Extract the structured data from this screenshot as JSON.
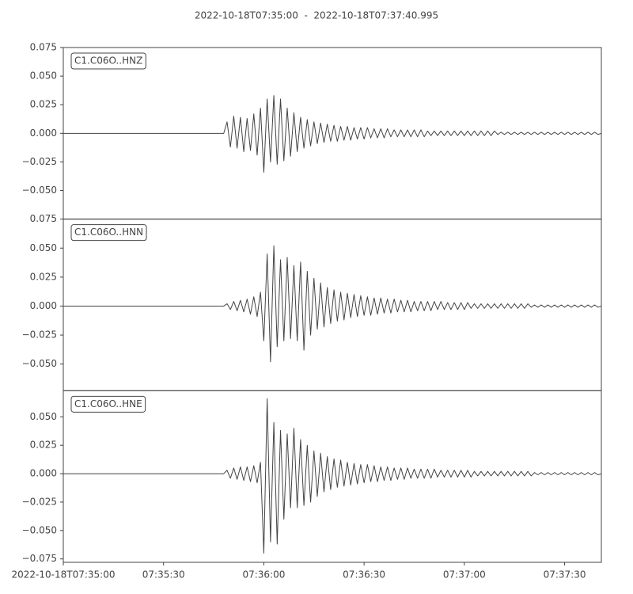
{
  "chart_data": {
    "type": "line",
    "title": "2022-10-18T07:35:00  -  2022-10-18T07:37:40.995",
    "xlim": [
      "07:35:00",
      "07:37:40.995"
    ],
    "xticks": [
      {
        "value": "07:35:00",
        "label": "2022-10-18T07:35:00"
      },
      "07:35:30",
      "07:36:00",
      "07:36:30",
      "07:37:00",
      "07:37:30"
    ],
    "x": [
      "07:35:00",
      "07:35:48",
      "07:35:49",
      "07:35:50",
      "07:35:51",
      "07:35:52",
      "07:35:53",
      "07:35:54",
      "07:35:55",
      "07:35:56",
      "07:35:57",
      "07:35:58",
      "07:35:59",
      "07:36:00",
      "07:36:01",
      "07:36:02",
      "07:36:03",
      "07:36:04",
      "07:36:05",
      "07:36:06",
      "07:36:07",
      "07:36:08",
      "07:36:09",
      "07:36:10",
      "07:36:11",
      "07:36:12",
      "07:36:13",
      "07:36:14",
      "07:36:15",
      "07:36:16",
      "07:36:17",
      "07:36:18",
      "07:36:19",
      "07:36:20",
      "07:36:21",
      "07:36:22",
      "07:36:23",
      "07:36:24",
      "07:36:25",
      "07:36:26",
      "07:36:27",
      "07:36:28",
      "07:36:29",
      "07:36:30",
      "07:36:31",
      "07:36:32",
      "07:36:33",
      "07:36:34",
      "07:36:35",
      "07:36:36",
      "07:36:37",
      "07:36:38",
      "07:36:39",
      "07:36:40",
      "07:36:41",
      "07:36:42",
      "07:36:43",
      "07:36:44",
      "07:36:45",
      "07:36:46",
      "07:36:47",
      "07:36:48",
      "07:36:49",
      "07:36:50",
      "07:36:51",
      "07:36:52",
      "07:36:53",
      "07:36:54",
      "07:36:55",
      "07:36:56",
      "07:36:57",
      "07:36:58",
      "07:36:59",
      "07:37:00",
      "07:37:01",
      "07:37:02",
      "07:37:03",
      "07:37:04",
      "07:37:05",
      "07:37:06",
      "07:37:07",
      "07:37:08",
      "07:37:09",
      "07:37:10",
      "07:37:11",
      "07:37:12",
      "07:37:13",
      "07:37:14",
      "07:37:15",
      "07:37:16",
      "07:37:17",
      "07:37:18",
      "07:37:19",
      "07:37:20",
      "07:37:21",
      "07:37:22",
      "07:37:23",
      "07:37:24",
      "07:37:25",
      "07:37:26",
      "07:37:27",
      "07:37:28",
      "07:37:29",
      "07:37:30",
      "07:37:31",
      "07:37:32",
      "07:37:33",
      "07:37:34",
      "07:37:35",
      "07:37:36",
      "07:37:37",
      "07:37:38",
      "07:37:39",
      "07:37:40",
      "07:37:40.995"
    ],
    "series": [
      {
        "name": "C1.C06O..HNZ",
        "color": "#444444",
        "ylim": [
          -0.075,
          0.075
        ],
        "yticks": [
          0.075,
          {
            "value": 0.05,
            "label": "0.050"
          },
          0.025,
          {
            "value": 0,
            "label": "0.000"
          },
          {
            "value": -0.025,
            "label": "−0.025"
          },
          {
            "value": -0.05,
            "label": "−0.050"
          }
        ],
        "values": [
          0,
          0,
          0.01,
          -0.012,
          0.015,
          -0.013,
          0.014,
          -0.016,
          0.013,
          -0.015,
          0.017,
          -0.019,
          0.022,
          -0.034,
          0.03,
          -0.025,
          0.033,
          -0.027,
          0.03,
          -0.024,
          0.022,
          -0.02,
          0.018,
          -0.016,
          0.014,
          -0.013,
          0.012,
          -0.011,
          0.01,
          -0.009,
          0.009,
          -0.008,
          0.008,
          -0.007,
          0.007,
          -0.007,
          0.006,
          -0.006,
          0.006,
          -0.006,
          0.005,
          -0.005,
          0.005,
          -0.005,
          0.005,
          -0.004,
          0.004,
          -0.004,
          0.004,
          -0.004,
          0.004,
          -0.003,
          0.003,
          -0.003,
          0.003,
          -0.003,
          0.003,
          -0.003,
          0.003,
          -0.003,
          0.003,
          -0.003,
          0.002,
          -0.002,
          0.002,
          -0.002,
          0.002,
          -0.002,
          0.002,
          -0.002,
          0.002,
          -0.002,
          0.002,
          -0.002,
          0.002,
          -0.002,
          0.002,
          -0.002,
          0.002,
          -0.002,
          0.002,
          -0.002,
          0.002,
          -0.001,
          0.001,
          -0.001,
          0.001,
          -0.001,
          0.001,
          -0.001,
          0.001,
          -0.001,
          0.001,
          -0.001,
          0.001,
          -0.001,
          0.001,
          -0.001,
          0.001,
          -0.001,
          0.001,
          -0.001,
          0.001,
          -0.001,
          0.001,
          -0.001,
          0.001,
          -0.001,
          0.001,
          -0.001,
          0.001,
          -0.001,
          0.001,
          -0.001,
          0
        ]
      },
      {
        "name": "C1.C06O..HNN",
        "color": "#444444",
        "ylim": [
          -0.073,
          0.075
        ],
        "yticks": [
          0.075,
          {
            "value": 0.05,
            "label": "0.050"
          },
          0.025,
          {
            "value": 0,
            "label": "0.000"
          },
          {
            "value": -0.025,
            "label": "−0.025"
          },
          {
            "value": -0.05,
            "label": "−0.050"
          }
        ],
        "values": [
          0,
          0,
          0.002,
          -0.003,
          0.004,
          -0.004,
          0.005,
          -0.005,
          0.006,
          -0.007,
          0.008,
          -0.009,
          0.012,
          -0.03,
          0.045,
          -0.048,
          0.052,
          -0.035,
          0.04,
          -0.03,
          0.042,
          -0.028,
          0.035,
          -0.03,
          0.038,
          -0.038,
          0.03,
          -0.025,
          0.024,
          -0.02,
          0.02,
          -0.018,
          0.016,
          -0.015,
          0.014,
          -0.013,
          0.012,
          -0.012,
          0.011,
          -0.01,
          0.01,
          -0.009,
          0.009,
          -0.008,
          0.008,
          -0.008,
          0.007,
          -0.007,
          0.007,
          -0.006,
          0.006,
          -0.006,
          0.006,
          -0.005,
          0.005,
          -0.005,
          0.005,
          -0.005,
          0.004,
          -0.004,
          0.004,
          -0.004,
          0.004,
          -0.004,
          0.004,
          -0.003,
          0.004,
          -0.003,
          0.003,
          -0.003,
          0.003,
          -0.003,
          0.003,
          -0.003,
          0.003,
          -0.002,
          0.002,
          -0.002,
          0.002,
          -0.002,
          0.002,
          -0.002,
          0.002,
          -0.002,
          0.002,
          -0.002,
          0.002,
          -0.002,
          0.002,
          -0.002,
          0.002,
          -0.002,
          0.002,
          -0.001,
          0.001,
          -0.001,
          0.001,
          -0.001,
          0.001,
          -0.001,
          0.001,
          -0.001,
          0.001,
          -0.001,
          0.001,
          -0.001,
          0.001,
          -0.001,
          0.001,
          -0.001,
          0.001,
          -0.001,
          0.001,
          -0.001,
          0
        ]
      },
      {
        "name": "C1.C06O..HNE",
        "color": "#444444",
        "ylim": [
          -0.078,
          0.073
        ],
        "yticks": [
          {
            "value": 0.05,
            "label": "0.050"
          },
          0.025,
          {
            "value": 0,
            "label": "0.000"
          },
          {
            "value": -0.025,
            "label": "−0.025"
          },
          {
            "value": -0.05,
            "label": "−0.050"
          },
          {
            "value": -0.075,
            "label": "−0.075"
          }
        ],
        "values": [
          0,
          0,
          0.003,
          -0.004,
          0.005,
          -0.005,
          0.006,
          -0.006,
          0.006,
          -0.007,
          0.007,
          -0.008,
          0.01,
          -0.07,
          0.066,
          -0.06,
          0.045,
          -0.062,
          0.038,
          -0.04,
          0.035,
          -0.03,
          0.04,
          -0.03,
          0.03,
          -0.028,
          0.025,
          -0.025,
          0.02,
          -0.02,
          0.018,
          -0.016,
          0.015,
          -0.014,
          0.013,
          -0.012,
          0.012,
          -0.011,
          0.01,
          -0.01,
          0.009,
          -0.009,
          0.008,
          -0.008,
          0.008,
          -0.007,
          0.007,
          -0.007,
          0.006,
          -0.006,
          0.006,
          -0.006,
          0.005,
          -0.005,
          0.005,
          -0.005,
          0.005,
          -0.004,
          0.004,
          -0.004,
          0.004,
          -0.004,
          0.004,
          -0.004,
          0.004,
          -0.003,
          0.003,
          -0.003,
          0.003,
          -0.003,
          0.003,
          -0.003,
          0.003,
          -0.003,
          0.003,
          -0.003,
          0.002,
          -0.002,
          0.002,
          -0.002,
          0.002,
          -0.002,
          0.002,
          -0.002,
          0.002,
          -0.002,
          0.002,
          -0.002,
          0.002,
          -0.002,
          0.002,
          -0.002,
          0.002,
          -0.002,
          0.001,
          -0.001,
          0.001,
          -0.001,
          0.001,
          -0.001,
          0.001,
          -0.001,
          0.001,
          -0.001,
          0.001,
          -0.001,
          0.001,
          -0.001,
          0.001,
          -0.001,
          0.001,
          -0.001,
          0.001,
          -0.001,
          0
        ]
      }
    ]
  }
}
